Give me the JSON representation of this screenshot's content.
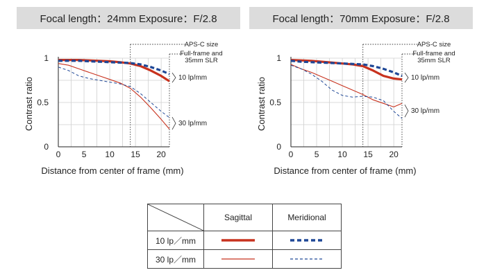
{
  "chart_data": [
    {
      "type": "line",
      "title": "Focal length：24mm  Exposure：F/2.8",
      "xlabel": "Distance from center of frame (mm)",
      "ylabel": "Contrast ratio",
      "xlim": [
        0,
        21.6
      ],
      "ylim": [
        0,
        1
      ],
      "xticks": [
        "0",
        "5",
        "10",
        "15",
        "20"
      ],
      "yticks": [
        "0",
        "0.5",
        "1"
      ],
      "aps_c_boundary": 14,
      "series": [
        {
          "name": "Sagittal 10 lp/mm",
          "x": [
            0,
            2,
            4,
            6,
            8,
            10,
            12,
            14,
            16,
            18,
            20,
            21.6
          ],
          "y": [
            0.98,
            0.98,
            0.98,
            0.975,
            0.97,
            0.965,
            0.955,
            0.94,
            0.91,
            0.86,
            0.8,
            0.74
          ]
        },
        {
          "name": "Meridional 10 lp/mm",
          "x": [
            0,
            2,
            4,
            6,
            8,
            10,
            12,
            14,
            16,
            18,
            20,
            21.6
          ],
          "y": [
            0.97,
            0.97,
            0.97,
            0.965,
            0.96,
            0.955,
            0.95,
            0.945,
            0.93,
            0.9,
            0.86,
            0.82
          ]
        },
        {
          "name": "Sagittal 30 lp/mm",
          "x": [
            0,
            2,
            4,
            6,
            8,
            10,
            12,
            14,
            16,
            18,
            20,
            21.6
          ],
          "y": [
            0.94,
            0.92,
            0.88,
            0.84,
            0.8,
            0.76,
            0.72,
            0.66,
            0.56,
            0.44,
            0.31,
            0.2
          ]
        },
        {
          "name": "Meridional 30 lp/mm",
          "x": [
            0,
            2,
            4,
            6,
            8,
            10,
            12,
            14,
            16,
            18,
            20,
            21.6
          ],
          "y": [
            0.9,
            0.86,
            0.8,
            0.77,
            0.75,
            0.73,
            0.71,
            0.68,
            0.6,
            0.5,
            0.4,
            0.33
          ]
        }
      ],
      "annotations": {
        "aps_c": "APS-C size",
        "full_frame": "Full-frame and 35mm SLR",
        "lp10": "10 lp/mm",
        "lp30": "30 lp/mm"
      }
    },
    {
      "type": "line",
      "title": "Focal length：70mm  Exposure：F/2.8",
      "xlabel": "Distance from center of frame (mm)",
      "ylabel": "Contrast ratio",
      "xlim": [
        0,
        21.6
      ],
      "ylim": [
        0,
        1
      ],
      "xticks": [
        "0",
        "5",
        "10",
        "15",
        "20"
      ],
      "yticks": [
        "0",
        "0.5",
        "1"
      ],
      "aps_c_boundary": 14,
      "series": [
        {
          "name": "Sagittal 10 lp/mm",
          "x": [
            0,
            2,
            4,
            6,
            8,
            10,
            12,
            14,
            16,
            18,
            20,
            21.6
          ],
          "y": [
            0.98,
            0.975,
            0.97,
            0.96,
            0.95,
            0.94,
            0.93,
            0.91,
            0.86,
            0.8,
            0.77,
            0.76
          ]
        },
        {
          "name": "Meridional 10 lp/mm",
          "x": [
            0,
            2,
            4,
            6,
            8,
            10,
            12,
            14,
            16,
            18,
            20,
            21.6
          ],
          "y": [
            0.97,
            0.96,
            0.955,
            0.95,
            0.945,
            0.94,
            0.935,
            0.93,
            0.91,
            0.88,
            0.84,
            0.8
          ]
        },
        {
          "name": "Sagittal 30 lp/mm",
          "x": [
            0,
            2,
            4,
            6,
            8,
            10,
            12,
            14,
            16,
            18,
            20,
            21.6
          ],
          "y": [
            0.93,
            0.88,
            0.84,
            0.79,
            0.74,
            0.69,
            0.64,
            0.59,
            0.53,
            0.49,
            0.45,
            0.49
          ]
        },
        {
          "name": "Meridional 30 lp/mm",
          "x": [
            0,
            2,
            4,
            6,
            8,
            10,
            12,
            14,
            16,
            18,
            20,
            21.6
          ],
          "y": [
            0.92,
            0.88,
            0.82,
            0.74,
            0.64,
            0.58,
            0.56,
            0.57,
            0.56,
            0.52,
            0.4,
            0.32
          ]
        }
      ],
      "annotations": {
        "aps_c": "APS-C size",
        "full_frame": "Full-frame and 35mm SLR",
        "lp10": "10 lp/mm",
        "lp30": "30 lp/mm"
      }
    }
  ],
  "legend": {
    "col_sagittal": "Sagittal",
    "col_meridional": "Meridional",
    "row_10": "10 lp／mm",
    "row_30": "30 lp／mm"
  },
  "colors": {
    "sagittal": "#c8321e",
    "meridional": "#1e4796",
    "grid": "#cfcfcf",
    "header_bg": "#dcdcdc"
  }
}
